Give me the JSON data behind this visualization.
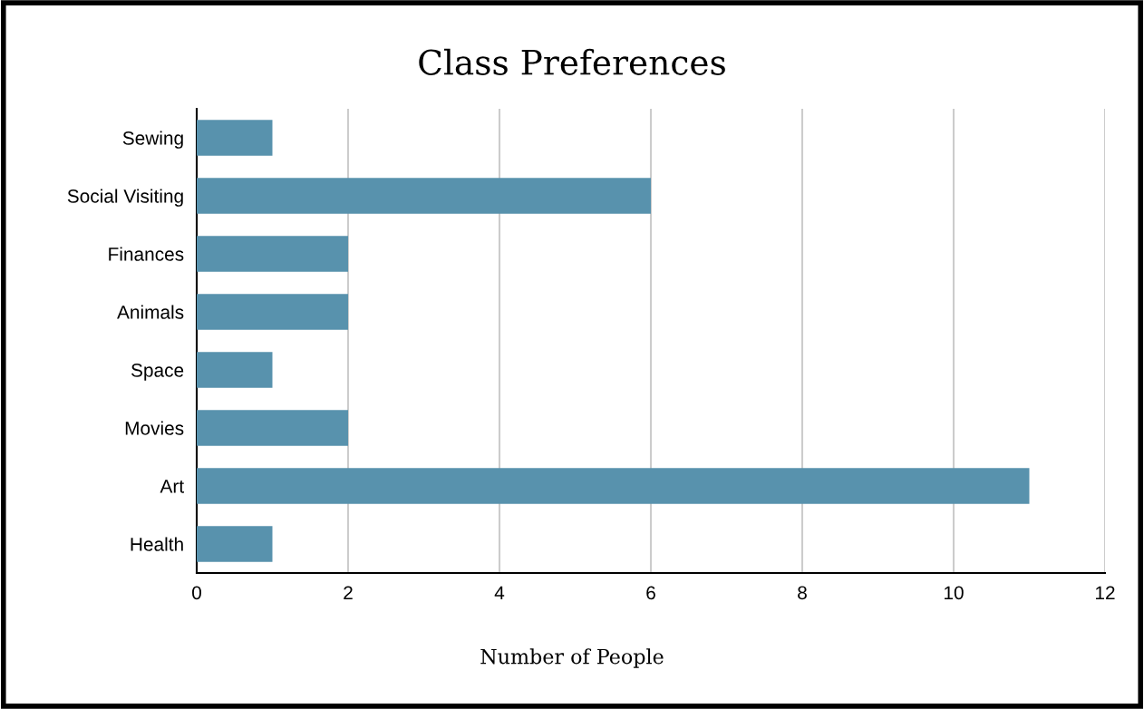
{
  "chart_data": {
    "type": "bar",
    "orientation": "horizontal",
    "title": "Class Preferences",
    "xlabel": "Number of People",
    "categories": [
      "Sewing",
      "Social Visiting",
      "Finances",
      "Animals",
      "Space",
      "Movies",
      "Art",
      "Health"
    ],
    "values": [
      1,
      6,
      2,
      2,
      1,
      2,
      11,
      1
    ],
    "color": "#5892ad",
    "xlim": [
      0,
      12
    ],
    "xticks": [
      0,
      2,
      4,
      6,
      8,
      10,
      12
    ],
    "grid": "x"
  }
}
